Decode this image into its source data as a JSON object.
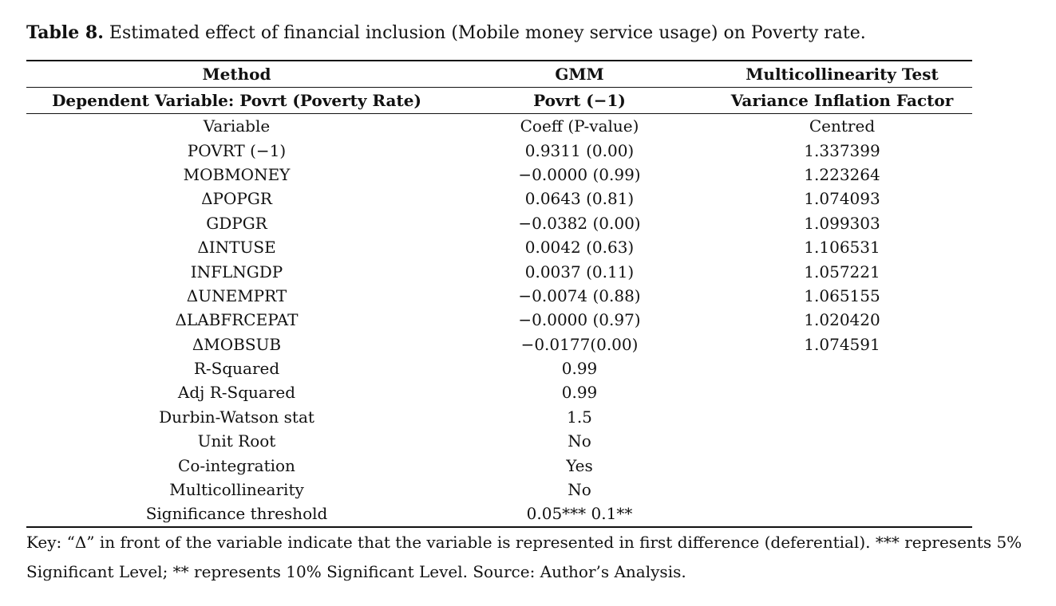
{
  "caption": {
    "label": "Table 8.",
    "text": "Estimated effect of financial inclusion (Mobile money service usage) on Poverty rate."
  },
  "table": {
    "header": [
      [
        "Method",
        "GMM",
        "Multicollinearity Test"
      ],
      [
        "Dependent Variable: Povrt (Poverty Rate)",
        "Povrt (−1)",
        "Variance Inflation Factor"
      ]
    ],
    "rows": [
      [
        "Variable",
        "Coeff (P-value)",
        "Centred"
      ],
      [
        "POVRT (−1)",
        "0.9311 (0.00)",
        "1.337399"
      ],
      [
        "MOBMONEY",
        "−0.0000 (0.99)",
        "1.223264"
      ],
      [
        "ΔPOPGR",
        "0.0643 (0.81)",
        "1.074093"
      ],
      [
        "GDPGR",
        "−0.0382 (0.00)",
        "1.099303"
      ],
      [
        "ΔINTUSE",
        "0.0042 (0.63)",
        "1.106531"
      ],
      [
        "INFLNGDP",
        "0.0037 (0.11)",
        "1.057221"
      ],
      [
        "ΔUNEMPRT",
        "−0.0074 (0.88)",
        "1.065155"
      ],
      [
        "ΔLABFRCEPAT",
        "−0.0000 (0.97)",
        "1.020420"
      ],
      [
        "ΔMOBSUB",
        "−0.0177(0.00)",
        "1.074591"
      ],
      [
        "R-Squared",
        "0.99"
      ],
      [
        "Adj R-Squared",
        "0.99"
      ],
      [
        "Durbin-Watson stat",
        "1.5"
      ],
      [
        "Unit Root",
        "No"
      ],
      [
        "Co-integration",
        "Yes"
      ],
      [
        "Multicollinearity",
        "No"
      ],
      [
        "Significance threshold",
        "0.05*** 0.1**"
      ]
    ]
  },
  "note": "Key: “Δ” in front of the variable indicate that the variable is represented in first difference (deferential). *** represents 5% Significant Level; ** represents 10% Significant Level. Source: Author’s Analysis."
}
